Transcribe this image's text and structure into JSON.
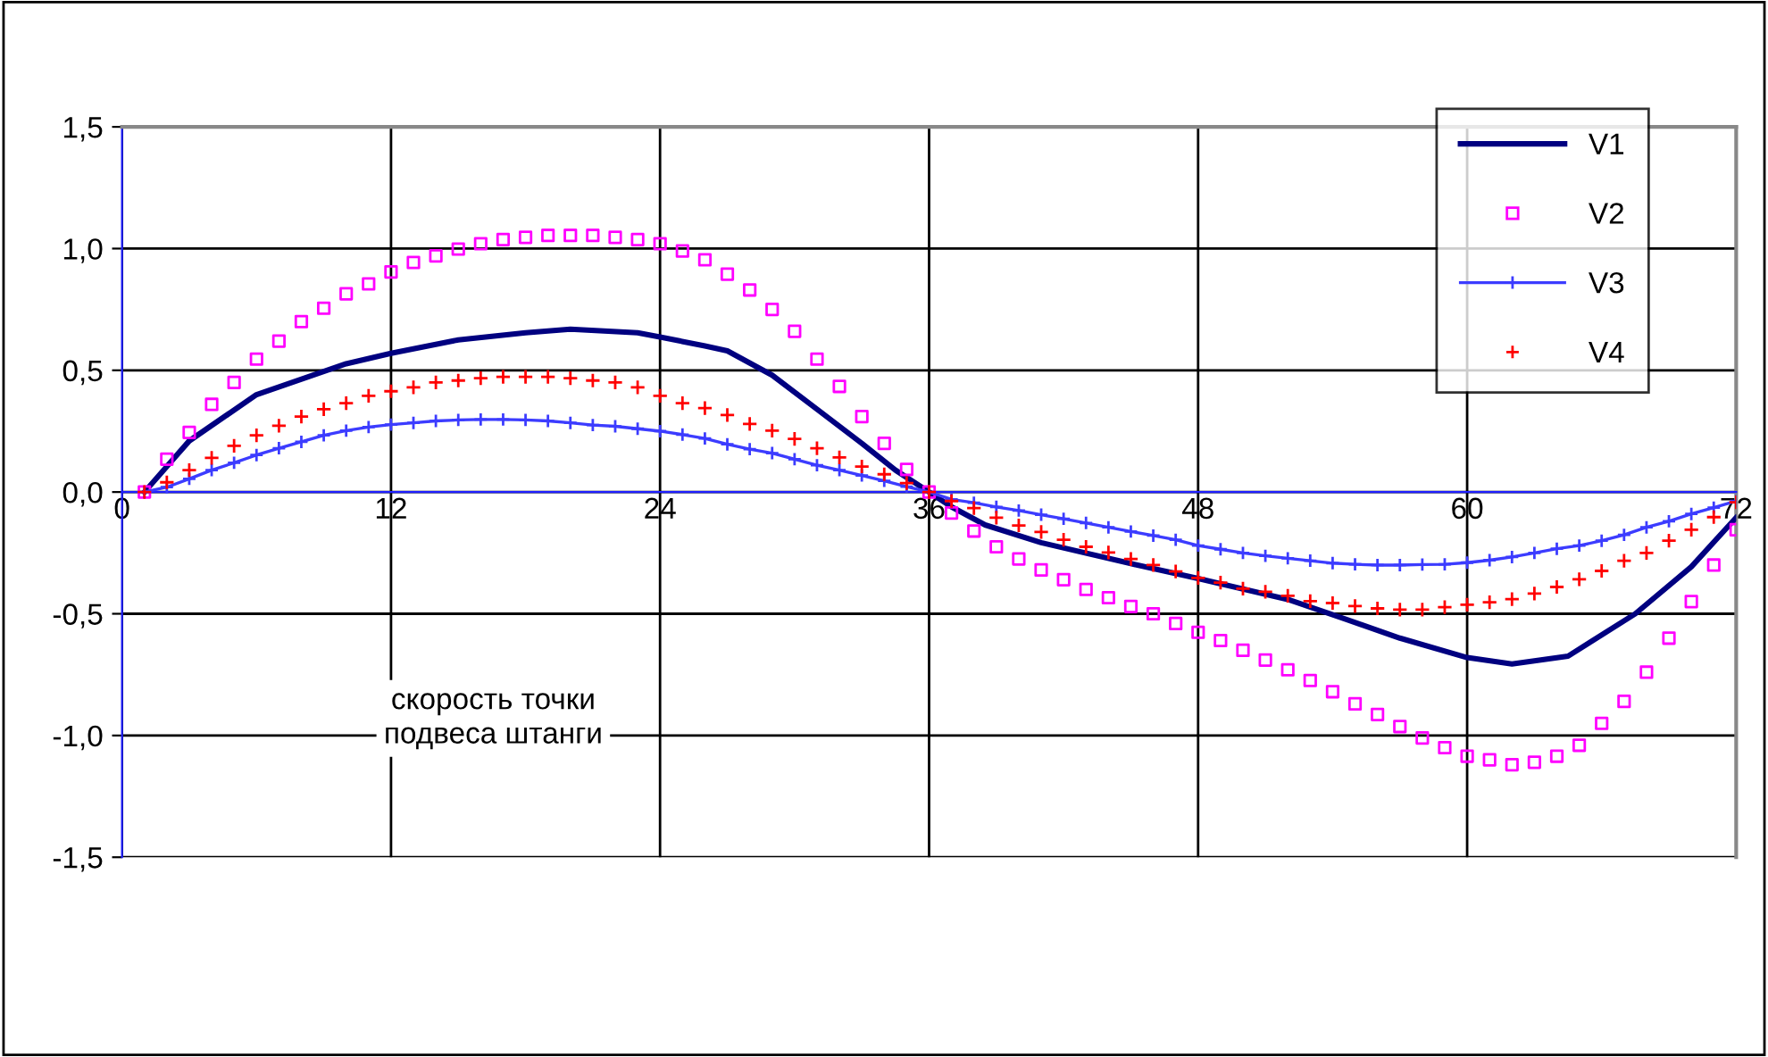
{
  "chart_data": {
    "type": "line",
    "xlim": [
      0,
      72
    ],
    "xticks": [
      0,
      12,
      24,
      36,
      48,
      60,
      72
    ],
    "ylim": [
      -1.5,
      1.5
    ],
    "yticks": [
      {
        "value": 1.5,
        "label": "1,5"
      },
      {
        "value": 1.0,
        "label": "1,0"
      },
      {
        "value": 0.5,
        "label": "0,5"
      },
      {
        "value": 0,
        "label": "0,0"
      },
      {
        "value": -0.5,
        "label": "-0,5"
      },
      {
        "value": -1.0,
        "label": "-1,0"
      },
      {
        "value": -1.5,
        "label": "-1,5"
      }
    ],
    "grid": true,
    "legend": "top right",
    "x": [
      1,
      2,
      3,
      4,
      5,
      6,
      7,
      8,
      9,
      10,
      11,
      12,
      13,
      14,
      15,
      16,
      17,
      18,
      19,
      20,
      21,
      22,
      23,
      24,
      25,
      26,
      27,
      28,
      29,
      30,
      31,
      32,
      33,
      34,
      35,
      36,
      37,
      38,
      39,
      40,
      41,
      42,
      43,
      44,
      45,
      46,
      47,
      48,
      49,
      50,
      51,
      52,
      53,
      54,
      55,
      56,
      57,
      58,
      59,
      60,
      61,
      62,
      63,
      64,
      65,
      66,
      67,
      68,
      69,
      70,
      71,
      72
    ],
    "annotations": [
      "скорость точки\nподвеса штанги"
    ],
    "series": [
      {
        "name": "V1",
        "type": "line",
        "color": "#000080",
        "marker": "none",
        "x": [
          1,
          3,
          6,
          10,
          12,
          15,
          18,
          20,
          23,
          24,
          26,
          27,
          29,
          31,
          33,
          34.5,
          36,
          37,
          38.5,
          41,
          45,
          48,
          52,
          54.5,
          57,
          60,
          62,
          64.5,
          67.5,
          70,
          72
        ],
        "values": [
          0,
          0.21,
          0.4,
          0.527,
          0.57,
          0.625,
          0.654,
          0.669,
          0.654,
          0.637,
          0.6,
          0.58,
          0.48,
          0.34,
          0.2,
          0.09,
          0,
          -0.061,
          -0.135,
          -0.208,
          -0.294,
          -0.355,
          -0.441,
          -0.52,
          -0.6,
          -0.68,
          -0.706,
          -0.674,
          -0.5,
          -0.307,
          -0.105
        ]
      },
      {
        "name": "V2",
        "type": "scatter",
        "color": "#ff00ff",
        "marker": "square",
        "values": [
          0,
          0.135,
          0.245,
          0.36,
          0.45,
          0.546,
          0.62,
          0.7,
          0.755,
          0.814,
          0.855,
          0.904,
          0.943,
          0.97,
          0.998,
          1.02,
          1.037,
          1.046,
          1.054,
          1.054,
          1.054,
          1.046,
          1.037,
          1.02,
          0.99,
          0.954,
          0.895,
          0.83,
          0.75,
          0.66,
          0.546,
          0.434,
          0.31,
          0.2,
          0.093,
          0,
          -0.086,
          -0.16,
          -0.225,
          -0.275,
          -0.32,
          -0.36,
          -0.4,
          -0.434,
          -0.47,
          -0.5,
          -0.54,
          -0.576,
          -0.61,
          -0.65,
          -0.69,
          -0.73,
          -0.774,
          -0.82,
          -0.87,
          -0.914,
          -0.963,
          -1.01,
          -1.05,
          -1.085,
          -1.1,
          -1.12,
          -1.11,
          -1.085,
          -1.04,
          -0.95,
          -0.86,
          -0.74,
          -0.6,
          -0.45,
          -0.3,
          -0.155
        ]
      },
      {
        "name": "V3",
        "type": "line",
        "color": "#3c3cff",
        "marker": "cross",
        "values": [
          0,
          0.02,
          0.054,
          0.09,
          0.12,
          0.152,
          0.18,
          0.206,
          0.233,
          0.252,
          0.267,
          0.277,
          0.284,
          0.292,
          0.296,
          0.298,
          0.298,
          0.296,
          0.292,
          0.284,
          0.275,
          0.27,
          0.26,
          0.25,
          0.236,
          0.22,
          0.196,
          0.176,
          0.16,
          0.135,
          0.11,
          0.09,
          0.068,
          0.046,
          0.022,
          0,
          -0.03,
          -0.044,
          -0.061,
          -0.076,
          -0.093,
          -0.11,
          -0.127,
          -0.145,
          -0.162,
          -0.179,
          -0.196,
          -0.22,
          -0.235,
          -0.25,
          -0.262,
          -0.272,
          -0.282,
          -0.292,
          -0.297,
          -0.3,
          -0.3,
          -0.298,
          -0.297,
          -0.29,
          -0.28,
          -0.267,
          -0.25,
          -0.233,
          -0.22,
          -0.2,
          -0.176,
          -0.145,
          -0.12,
          -0.09,
          -0.064,
          -0.037
        ]
      },
      {
        "name": "V4",
        "type": "scatter",
        "color": "#ff0000",
        "marker": "cross",
        "values": [
          0,
          0.04,
          0.09,
          0.14,
          0.19,
          0.233,
          0.272,
          0.31,
          0.34,
          0.365,
          0.395,
          0.414,
          0.43,
          0.45,
          0.458,
          0.468,
          0.473,
          0.473,
          0.473,
          0.468,
          0.458,
          0.45,
          0.43,
          0.395,
          0.365,
          0.345,
          0.316,
          0.28,
          0.252,
          0.218,
          0.18,
          0.142,
          0.105,
          0.073,
          0.037,
          0,
          -0.037,
          -0.066,
          -0.105,
          -0.137,
          -0.164,
          -0.196,
          -0.225,
          -0.248,
          -0.275,
          -0.3,
          -0.326,
          -0.353,
          -0.372,
          -0.397,
          -0.41,
          -0.426,
          -0.448,
          -0.456,
          -0.468,
          -0.478,
          -0.483,
          -0.483,
          -0.473,
          -0.463,
          -0.453,
          -0.44,
          -0.417,
          -0.39,
          -0.358,
          -0.324,
          -0.282,
          -0.25,
          -0.2,
          -0.155,
          -0.103,
          -0.042
        ]
      }
    ]
  }
}
